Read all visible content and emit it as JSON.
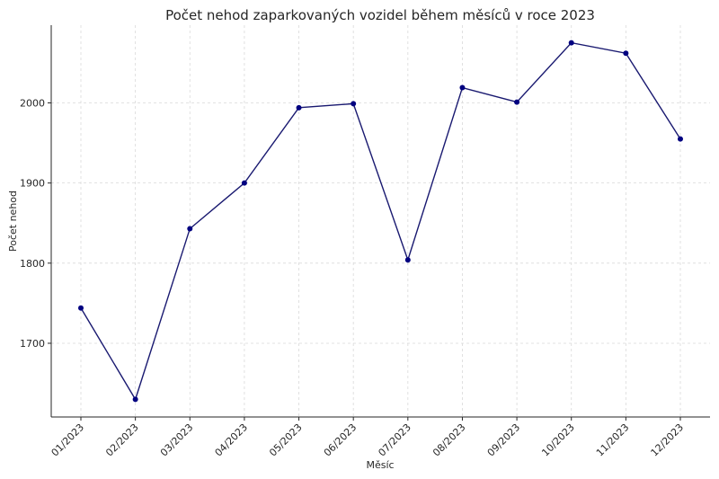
{
  "chart_data": {
    "type": "line",
    "title": "Počet nehod zaparkovaných vozidel během měsíců v roce 2023",
    "xlabel": "Měsíc",
    "ylabel": "Počet nehod",
    "categories": [
      "01/2023",
      "02/2023",
      "03/2023",
      "04/2023",
      "05/2023",
      "06/2023",
      "07/2023",
      "08/2023",
      "09/2023",
      "10/2023",
      "11/2023",
      "12/2023"
    ],
    "series": [
      {
        "values": [
          1744,
          1630,
          1843,
          1900,
          1994,
          1999,
          1804,
          2019,
          2001,
          2075,
          2062,
          1955
        ]
      }
    ],
    "ylim": [
      1608,
      2097
    ],
    "yticks": [
      1700,
      1800,
      1900,
      2000
    ],
    "grid": true,
    "legend": "none",
    "colors": {
      "line": "#191970",
      "marker": "#000080"
    }
  }
}
